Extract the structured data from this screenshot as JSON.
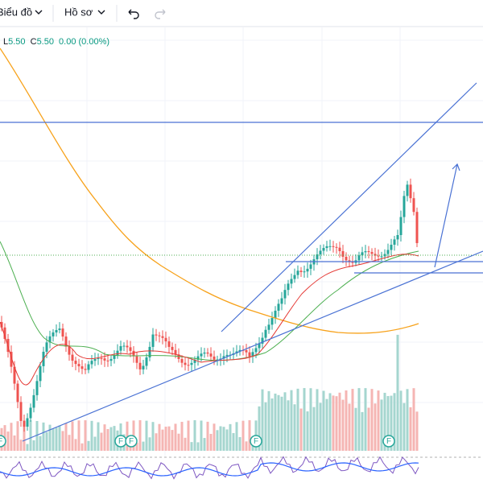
{
  "toolbar": {
    "chart_menu": "Biểu đồ",
    "profile_menu": "Hồ sơ"
  },
  "legend": {
    "low_label": "L",
    "low": "5.50",
    "close_label": "C",
    "close": "5.50",
    "change": "0.00 (0.00%)"
  },
  "events": [
    "F",
    "F",
    "F",
    "F",
    "F"
  ]
}
